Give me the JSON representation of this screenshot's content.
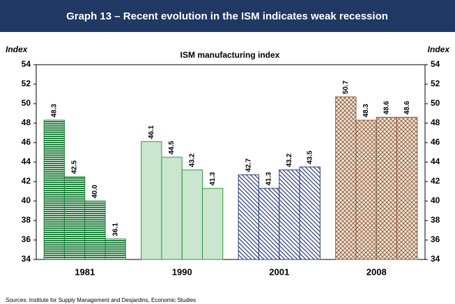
{
  "chart_data": {
    "type": "bar",
    "header": "Graph 13 – Recent evolution in the ISM indicates weak recession",
    "title": "ISM manufacturing index",
    "ylabel": "Index",
    "y2label": "Index",
    "source": "Sources: Institute for Supply Management and Desjardins, Economic Studies",
    "categories": [
      "1981",
      "1990",
      "2001",
      "2008"
    ],
    "groups": [
      {
        "values": [
          48.3,
          42.5,
          40.0,
          36.1
        ],
        "value_labels": [
          "48.3",
          "42.5",
          "40.0",
          "36.1"
        ],
        "color": "#1f7f3a",
        "pattern": "horizontal"
      },
      {
        "values": [
          46.1,
          44.5,
          43.2,
          41.3
        ],
        "value_labels": [
          "46.1",
          "44.5",
          "43.2",
          "41.3"
        ],
        "color": "#2e9a40",
        "pattern": "solid"
      },
      {
        "values": [
          42.7,
          41.3,
          43.2,
          43.5
        ],
        "value_labels": [
          "42.7",
          "41.3",
          "43.2",
          "43.5"
        ],
        "color": "#2b3a7e",
        "pattern": "diagonal"
      },
      {
        "values": [
          50.7,
          48.3,
          48.6,
          48.6
        ],
        "value_labels": [
          "50.7",
          "48.3",
          "48.6",
          "48.6"
        ],
        "color": "#8b5a3c",
        "pattern": "cross"
      }
    ],
    "ylim": [
      34,
      54
    ],
    "yticks": [
      34,
      36,
      38,
      40,
      42,
      44,
      46,
      48,
      50,
      52,
      54
    ],
    "y2lim": [
      34,
      54
    ],
    "y2ticks": [
      34,
      36,
      38,
      40,
      42,
      44,
      46,
      48,
      50,
      52,
      54
    ]
  }
}
